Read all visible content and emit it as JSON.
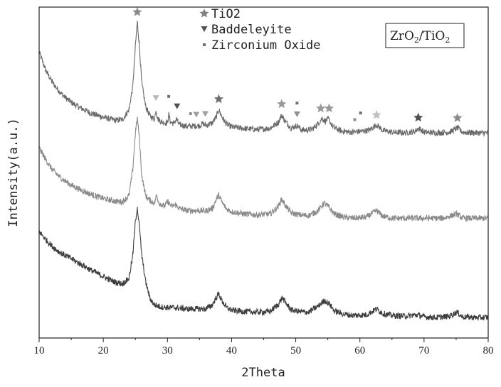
{
  "chart_data": {
    "type": "line",
    "title": "",
    "xlabel": "2Theta",
    "ylabel": "Intensity(a.u.)",
    "xlim": [
      10,
      80
    ],
    "xticks": [
      10,
      20,
      30,
      40,
      50,
      60,
      70,
      80
    ],
    "annotation": {
      "base": "ZrO",
      "sub1": "2",
      "mid": "/TiO",
      "sub2": "2"
    },
    "legend": [
      {
        "label": "TiO2",
        "marker": "star",
        "color": "#808080"
      },
      {
        "label": "Baddeleyite",
        "marker": "triangle-down",
        "color": "#505050"
      },
      {
        "label": "Zirconium Oxide",
        "marker": "square",
        "color": "#707070"
      }
    ],
    "series": [
      {
        "color": "#6a6a6a",
        "points": [
          [
            10,
            0.865
          ],
          [
            11,
            0.81
          ],
          [
            12,
            0.775
          ],
          [
            13,
            0.748
          ],
          [
            14,
            0.728
          ],
          [
            15,
            0.712
          ],
          [
            16,
            0.7
          ],
          [
            17,
            0.69
          ],
          [
            18,
            0.68
          ],
          [
            19,
            0.673
          ],
          [
            20,
            0.667
          ],
          [
            21,
            0.662
          ],
          [
            22,
            0.658
          ],
          [
            23,
            0.66
          ],
          [
            24,
            0.69
          ],
          [
            24.6,
            0.76
          ],
          [
            25.0,
            0.88
          ],
          [
            25.3,
            0.955
          ],
          [
            25.6,
            0.89
          ],
          [
            26.0,
            0.77
          ],
          [
            26.6,
            0.7
          ],
          [
            27.3,
            0.67
          ],
          [
            28.0,
            0.662
          ],
          [
            28.2,
            0.69
          ],
          [
            28.5,
            0.662
          ],
          [
            29.2,
            0.652
          ],
          [
            30.0,
            0.65
          ],
          [
            30.2,
            0.675
          ],
          [
            30.5,
            0.652
          ],
          [
            31.0,
            0.648
          ],
          [
            31.4,
            0.662
          ],
          [
            31.8,
            0.645
          ],
          [
            33,
            0.64
          ],
          [
            34,
            0.64
          ],
          [
            35,
            0.642
          ],
          [
            35.5,
            0.648
          ],
          [
            36,
            0.642
          ],
          [
            37,
            0.65
          ],
          [
            37.6,
            0.668
          ],
          [
            38.0,
            0.69
          ],
          [
            38.5,
            0.668
          ],
          [
            39.2,
            0.646
          ],
          [
            40,
            0.638
          ],
          [
            42,
            0.633
          ],
          [
            44,
            0.63
          ],
          [
            46,
            0.634
          ],
          [
            47.3,
            0.652
          ],
          [
            47.8,
            0.674
          ],
          [
            48.4,
            0.654
          ],
          [
            49.3,
            0.634
          ],
          [
            50.2,
            0.642
          ],
          [
            51,
            0.628
          ],
          [
            52.5,
            0.63
          ],
          [
            53.5,
            0.648
          ],
          [
            54.1,
            0.664
          ],
          [
            54.6,
            0.655
          ],
          [
            55.1,
            0.662
          ],
          [
            55.8,
            0.638
          ],
          [
            57,
            0.626
          ],
          [
            58.5,
            0.622
          ],
          [
            60,
            0.624
          ],
          [
            61.5,
            0.628
          ],
          [
            62.6,
            0.645
          ],
          [
            63.6,
            0.627
          ],
          [
            65,
            0.622
          ],
          [
            67,
            0.62
          ],
          [
            68.5,
            0.624
          ],
          [
            69.2,
            0.634
          ],
          [
            70,
            0.622
          ],
          [
            72,
            0.62
          ],
          [
            74,
            0.622
          ],
          [
            75.2,
            0.635
          ],
          [
            76,
            0.622
          ],
          [
            78,
            0.62
          ],
          [
            80,
            0.62
          ]
        ]
      },
      {
        "color": "#8a8a8a",
        "points": [
          [
            10,
            0.575
          ],
          [
            11,
            0.54
          ],
          [
            12,
            0.51
          ],
          [
            13,
            0.49
          ],
          [
            14,
            0.475
          ],
          [
            15,
            0.462
          ],
          [
            16,
            0.452
          ],
          [
            17,
            0.443
          ],
          [
            18,
            0.435
          ],
          [
            19,
            0.428
          ],
          [
            20,
            0.422
          ],
          [
            21,
            0.417
          ],
          [
            22,
            0.413
          ],
          [
            23,
            0.412
          ],
          [
            24,
            0.43
          ],
          [
            24.6,
            0.51
          ],
          [
            25.0,
            0.62
          ],
          [
            25.3,
            0.665
          ],
          [
            25.6,
            0.61
          ],
          [
            26.0,
            0.49
          ],
          [
            26.6,
            0.43
          ],
          [
            27.3,
            0.415
          ],
          [
            28.0,
            0.408
          ],
          [
            28.3,
            0.432
          ],
          [
            28.7,
            0.408
          ],
          [
            29.5,
            0.398
          ],
          [
            30.1,
            0.412
          ],
          [
            30.6,
            0.398
          ],
          [
            31.3,
            0.402
          ],
          [
            32,
            0.39
          ],
          [
            33,
            0.385
          ],
          [
            34,
            0.385
          ],
          [
            35,
            0.385
          ],
          [
            36,
            0.384
          ],
          [
            37,
            0.392
          ],
          [
            37.6,
            0.418
          ],
          [
            38.0,
            0.432
          ],
          [
            38.5,
            0.41
          ],
          [
            39.2,
            0.39
          ],
          [
            40,
            0.382
          ],
          [
            42,
            0.375
          ],
          [
            44,
            0.372
          ],
          [
            46,
            0.375
          ],
          [
            47.3,
            0.398
          ],
          [
            47.8,
            0.42
          ],
          [
            48.4,
            0.4
          ],
          [
            49.3,
            0.378
          ],
          [
            50.5,
            0.372
          ],
          [
            52,
            0.37
          ],
          [
            53.5,
            0.385
          ],
          [
            54.4,
            0.408
          ],
          [
            55.2,
            0.395
          ],
          [
            56,
            0.375
          ],
          [
            57.5,
            0.365
          ],
          [
            59,
            0.362
          ],
          [
            61,
            0.365
          ],
          [
            62.6,
            0.385
          ],
          [
            63.6,
            0.368
          ],
          [
            65,
            0.362
          ],
          [
            67,
            0.362
          ],
          [
            69,
            0.362
          ],
          [
            71,
            0.362
          ],
          [
            73,
            0.362
          ],
          [
            75.1,
            0.375
          ],
          [
            76,
            0.362
          ],
          [
            78,
            0.362
          ],
          [
            80,
            0.362
          ]
        ]
      },
      {
        "color": "#3c3c3c",
        "points": [
          [
            10,
            0.322
          ],
          [
            11,
            0.298
          ],
          [
            12,
            0.278
          ],
          [
            13,
            0.262
          ],
          [
            14,
            0.25
          ],
          [
            15,
            0.24
          ],
          [
            16,
            0.228
          ],
          [
            17,
            0.218
          ],
          [
            18,
            0.206
          ],
          [
            19,
            0.196
          ],
          [
            20,
            0.186
          ],
          [
            21,
            0.176
          ],
          [
            22,
            0.168
          ],
          [
            23,
            0.164
          ],
          [
            24,
            0.18
          ],
          [
            24.6,
            0.25
          ],
          [
            25.0,
            0.35
          ],
          [
            25.3,
            0.395
          ],
          [
            25.6,
            0.34
          ],
          [
            26.0,
            0.25
          ],
          [
            26.6,
            0.17
          ],
          [
            27.3,
            0.118
          ],
          [
            28.0,
            0.1
          ],
          [
            29,
            0.094
          ],
          [
            30,
            0.092
          ],
          [
            31,
            0.092
          ],
          [
            32,
            0.09
          ],
          [
            33,
            0.088
          ],
          [
            34,
            0.088
          ],
          [
            35,
            0.088
          ],
          [
            36,
            0.088
          ],
          [
            37,
            0.1
          ],
          [
            37.6,
            0.122
          ],
          [
            38.0,
            0.134
          ],
          [
            38.5,
            0.112
          ],
          [
            39.2,
            0.092
          ],
          [
            40,
            0.084
          ],
          [
            42,
            0.08
          ],
          [
            44,
            0.078
          ],
          [
            46,
            0.08
          ],
          [
            47.3,
            0.102
          ],
          [
            47.9,
            0.122
          ],
          [
            48.5,
            0.104
          ],
          [
            49.3,
            0.085
          ],
          [
            50.5,
            0.08
          ],
          [
            52,
            0.078
          ],
          [
            53.5,
            0.096
          ],
          [
            54.5,
            0.114
          ],
          [
            55.3,
            0.102
          ],
          [
            56,
            0.082
          ],
          [
            57.5,
            0.072
          ],
          [
            59,
            0.068
          ],
          [
            61,
            0.07
          ],
          [
            62.6,
            0.088
          ],
          [
            63.6,
            0.074
          ],
          [
            65,
            0.068
          ],
          [
            67,
            0.066
          ],
          [
            69,
            0.07
          ],
          [
            70,
            0.064
          ],
          [
            72,
            0.062
          ],
          [
            74,
            0.066
          ],
          [
            75.1,
            0.078
          ],
          [
            76,
            0.064
          ],
          [
            78,
            0.062
          ],
          [
            80,
            0.062
          ]
        ]
      }
    ],
    "markers": [
      {
        "type": "star",
        "x": 25.3,
        "y": 0.985,
        "color": "#8a8a8a"
      },
      {
        "type": "star",
        "x": 38.0,
        "y": 0.722,
        "color": "#707070"
      },
      {
        "type": "star",
        "x": 47.8,
        "y": 0.707,
        "color": "#9a9a9a"
      },
      {
        "type": "star",
        "x": 53.9,
        "y": 0.694,
        "color": "#9a9a9a"
      },
      {
        "type": "star",
        "x": 55.2,
        "y": 0.694,
        "color": "#9a9a9a"
      },
      {
        "type": "star",
        "x": 62.6,
        "y": 0.674,
        "color": "#c0c0c0"
      },
      {
        "type": "star",
        "x": 69.1,
        "y": 0.666,
        "color": "#505050"
      },
      {
        "type": "star",
        "x": 75.2,
        "y": 0.665,
        "color": "#8a8a8a"
      },
      {
        "type": "tri",
        "x": 28.2,
        "y": 0.725,
        "color": "#b8b8b8"
      },
      {
        "type": "tri",
        "x": 31.5,
        "y": 0.7,
        "color": "#505050"
      },
      {
        "type": "tri",
        "x": 34.5,
        "y": 0.675,
        "color": "#a0a0a0"
      },
      {
        "type": "tri",
        "x": 35.9,
        "y": 0.677,
        "color": "#a0a0a0"
      },
      {
        "type": "tri",
        "x": 50.2,
        "y": 0.676,
        "color": "#909090"
      },
      {
        "type": "sq",
        "x": 30.2,
        "y": 0.73,
        "color": "#707070"
      },
      {
        "type": "sq",
        "x": 33.6,
        "y": 0.678,
        "color": "#909090"
      },
      {
        "type": "sq",
        "x": 50.2,
        "y": 0.71,
        "color": "#707070"
      },
      {
        "type": "sq",
        "x": 59.2,
        "y": 0.66,
        "color": "#909090"
      },
      {
        "type": "sq",
        "x": 60.1,
        "y": 0.68,
        "color": "#707070"
      }
    ]
  }
}
